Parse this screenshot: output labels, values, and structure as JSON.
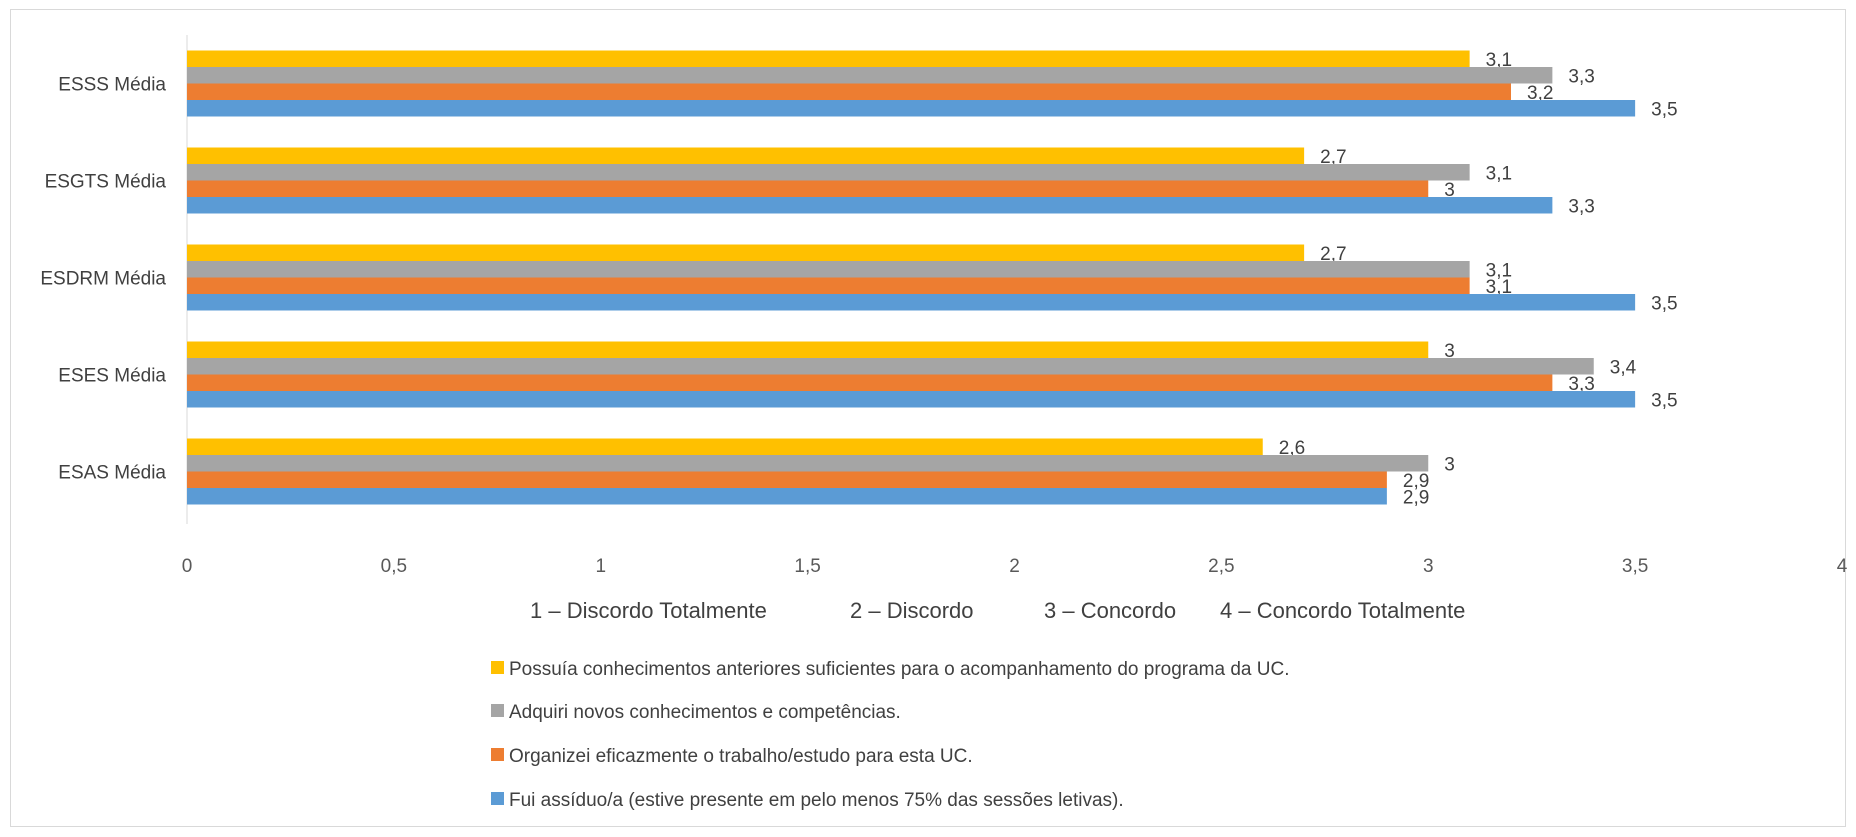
{
  "chart_data": {
    "type": "bar",
    "orientation": "horizontal",
    "categories": [
      "ESAS Média",
      "ESES Média",
      "ESDRM Média",
      "ESGTS Média",
      "ESSS Média"
    ],
    "series": [
      {
        "name": "Possuía conhecimentos anteriores suficientes para o acompanhamento do programa da UC.",
        "color": "#FFC000",
        "values": [
          2.6,
          3,
          2.7,
          2.7,
          3.1
        ],
        "labels": [
          "2,6",
          "3",
          "2,7",
          "2,7",
          "3,1"
        ]
      },
      {
        "name": "Adquiri novos conhecimentos e competências.",
        "color": "#A5A5A5",
        "values": [
          3,
          3.4,
          3.1,
          3.1,
          3.3
        ],
        "labels": [
          "3",
          "3,4",
          "3,1",
          "3,1",
          "3,3"
        ]
      },
      {
        "name": "Organizei eficazmente o trabalho/estudo para esta UC.",
        "color": "#ED7D31",
        "values": [
          2.9,
          3.3,
          3.1,
          3,
          3.2
        ],
        "labels": [
          "2,9",
          "3,3",
          "3,1",
          "3",
          "3,2"
        ]
      },
      {
        "name": " Fui assíduo/a (estive presente em pelo menos 75% das sessões letivas).",
        "color": "#5B9BD5",
        "values": [
          2.9,
          3.5,
          3.5,
          3.3,
          3.5
        ],
        "labels": [
          "2,9",
          "3,5",
          "3,5",
          "3,3",
          "3,5"
        ]
      }
    ],
    "xlim": [
      0,
      4
    ],
    "xticks": [
      {
        "v": 0,
        "label": "0"
      },
      {
        "v": 0.5,
        "label": "0,5"
      },
      {
        "v": 1,
        "label": "1"
      },
      {
        "v": 1.5,
        "label": "1,5"
      },
      {
        "v": 2,
        "label": "2"
      },
      {
        "v": 2.5,
        "label": "2,5"
      },
      {
        "v": 3,
        "label": "3"
      },
      {
        "v": 3.5,
        "label": "3,5"
      },
      {
        "v": 4,
        "label": "4"
      }
    ],
    "grid": false,
    "legend": "bottom",
    "scale_note": [
      "1 – Discordo Totalmente",
      "2 – Discordo",
      "3 – Concordo",
      "4 – Concordo Totalmente"
    ]
  }
}
